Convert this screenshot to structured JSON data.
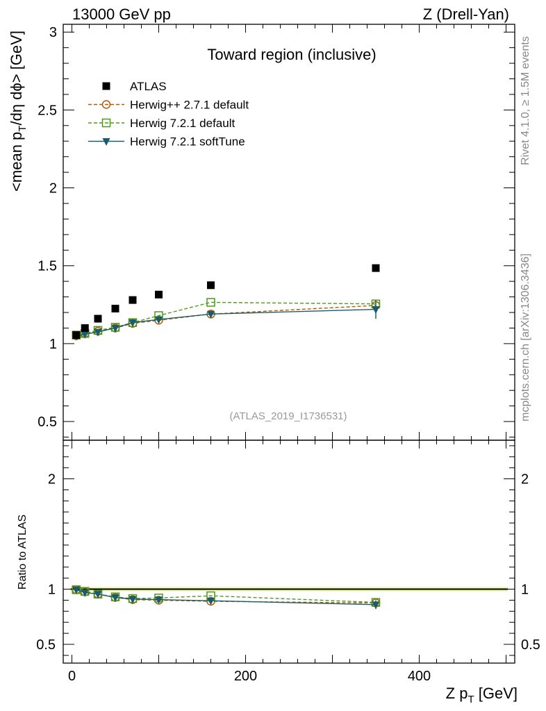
{
  "chart_data": {
    "type": "scatter",
    "header_left": "13000 GeV pp",
    "header_right": "Z (Drell-Yan)",
    "title": "Toward region (inclusive)",
    "analysis_id": "(ATLAS_2019_I1736531)",
    "side_note_top": "Rivet 4.1.0, ≥ 1.5M events",
    "side_note_bottom": "mcplots.cern.ch [arXiv:1306.3436]",
    "ylabel_main": "<mean p_T/dη dϕ> [GeV]",
    "ylabel_ratio": "Ratio to ATLAS",
    "xlabel": "Z p_T [GeV]",
    "xlim": [
      -10,
      510
    ],
    "ylim_main": [
      0.38,
      3.05
    ],
    "ylim_ratio": [
      0.33,
      2.35
    ],
    "x_ticks": [
      0,
      200,
      400
    ],
    "y_ticks_main": [
      0.5,
      1,
      1.5,
      2,
      2.5,
      3
    ],
    "y_ticks_main_labels": [
      "0.5",
      "1",
      "1.5",
      "2",
      "2.5",
      "3"
    ],
    "y_ticks_ratio": [
      0.5,
      1,
      2
    ],
    "y_ticks_ratio_labels": [
      "0.5",
      "1",
      "2"
    ],
    "x": [
      5,
      15,
      30,
      50,
      70,
      100,
      160,
      350
    ],
    "series": [
      {
        "name": "ATLAS",
        "color": "#000000",
        "marker": "square-filled",
        "line": "none",
        "values": [
          1.055,
          1.1,
          1.16,
          1.225,
          1.28,
          1.315,
          1.375,
          1.485
        ],
        "ratio": [
          1,
          1,
          1,
          1,
          1,
          1,
          1,
          1
        ]
      },
      {
        "name": "Herwig++ 2.7.1 default",
        "color": "#b35900",
        "marker": "circle-open",
        "line": "dashed",
        "values": [
          1.05,
          1.065,
          1.08,
          1.1,
          1.13,
          1.15,
          1.19,
          1.245
        ],
        "ratio": [
          0.995,
          0.975,
          0.955,
          0.925,
          0.905,
          0.9,
          0.89,
          0.875
        ]
      },
      {
        "name": "Herwig 7.2.1 default",
        "color": "#4c9a1a",
        "marker": "square-open",
        "line": "dashed",
        "values": [
          1.055,
          1.065,
          1.085,
          1.105,
          1.135,
          1.18,
          1.265,
          1.255
        ],
        "ratio": [
          0.995,
          0.98,
          0.955,
          0.93,
          0.915,
          0.92,
          0.94,
          0.88
        ]
      },
      {
        "name": "Herwig 7.2.1 softTune",
        "color": "#1a5b6e",
        "marker": "triangle-down-filled",
        "line": "solid",
        "values": [
          1.05,
          1.06,
          1.075,
          1.1,
          1.135,
          1.155,
          1.19,
          1.22
        ],
        "errors": [
          0.005,
          0.005,
          0.006,
          0.007,
          0.008,
          0.01,
          0.012,
          0.06
        ],
        "ratio": [
          0.995,
          0.97,
          0.955,
          0.925,
          0.91,
          0.905,
          0.895,
          0.86
        ],
        "ratio_errors": [
          0.004,
          0.004,
          0.005,
          0.006,
          0.007,
          0.008,
          0.01,
          0.04
        ]
      }
    ],
    "ratio_band_color": "#d9f07a",
    "legend_position": "top-left"
  }
}
